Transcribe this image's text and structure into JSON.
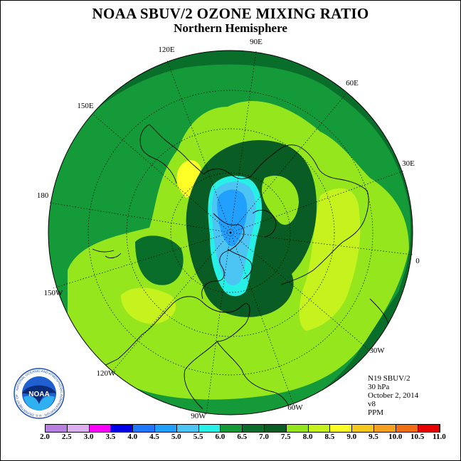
{
  "title": "NOAA SBUV/2 OZONE MIXING RATIO",
  "subtitle": "Northern Hemisphere",
  "longitude_labels": {
    "lon_90e": "90E",
    "lon_60e": "60E",
    "lon_30e": "30E",
    "lon_0": "0",
    "lon_30w": "30W",
    "lon_60w": "60W",
    "lon_90w": "90W",
    "lon_120w": "120W",
    "lon_150w": "150W",
    "lon_180": "180",
    "lon_150e": "150E",
    "lon_120e": "120E"
  },
  "info": {
    "satellite": "N19 SBUV/2",
    "level": "30 hPa",
    "date": "October 2, 2014",
    "version": "v8",
    "units": "PPM"
  },
  "logo": {
    "text": "NOAA",
    "ring_text": "NATIONAL OCEANIC AND ATMOSPHERIC ADMINISTRATION · U.S. DEPARTMENT OF COMMERCE"
  },
  "colorbar": {
    "colors": [
      "#b77fdf",
      "#dcb0ee",
      "#ff00ff",
      "#0000e6",
      "#1f78ff",
      "#22a0ff",
      "#4cc4f4",
      "#27f0e6",
      "#159a3a",
      "#0a6e2b",
      "#095c24",
      "#96e61e",
      "#c6f31e",
      "#ffff28",
      "#f5c81e",
      "#f5a01e",
      "#f06e14",
      "#e60000",
      "#8b4b28"
    ],
    "ticks": [
      "2.0",
      "2.5",
      "3.0",
      "3.5",
      "4.0",
      "4.5",
      "5.0",
      "5.5",
      "6.0",
      "6.5",
      "7.0",
      "7.5",
      "8.0",
      "8.5",
      "9.0",
      "9.5",
      "10.0",
      "10.5",
      "11.0"
    ]
  },
  "map_colors": {
    "band_6_0_6_5": "#159a3a",
    "band_6_5_7_0": "#0a6e2b",
    "band_7_0_7_5": "#095c24",
    "band_7_5_8_0": "#96e61e",
    "band_8_0_8_5": "#c6f31e",
    "band_8_5_9_0": "#ffff28",
    "band_5_0_5_5": "#4cc4f4",
    "band_4_5_5_0": "#22a0ff",
    "band_5_5_6_0": "#27f0e6"
  }
}
